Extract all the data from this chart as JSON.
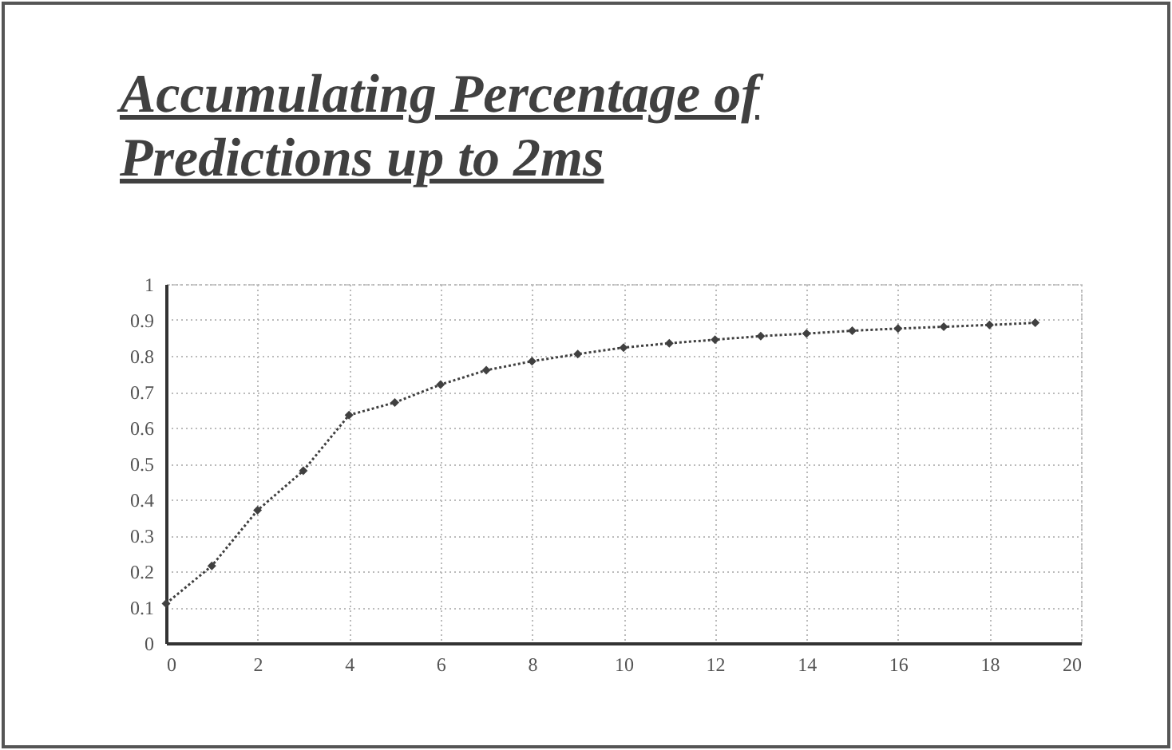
{
  "chart_data": {
    "type": "line",
    "title": "Accumulating Percentage of Predictions up to 2ms",
    "x": [
      0,
      1,
      2,
      3,
      4,
      5,
      6,
      7,
      8,
      9,
      10,
      11,
      12,
      13,
      14,
      15,
      16,
      17,
      18,
      19
    ],
    "series": [
      {
        "color": "#404040",
        "values": [
          0.11,
          0.215,
          0.37,
          0.48,
          0.635,
          0.67,
          0.72,
          0.76,
          0.785,
          0.805,
          0.823,
          0.835,
          0.845,
          0.855,
          0.862,
          0.87,
          0.876,
          0.881,
          0.886,
          0.892
        ]
      }
    ],
    "xlim": [
      0,
      20
    ],
    "xticks": [
      0,
      2,
      4,
      6,
      8,
      10,
      12,
      14,
      16,
      18,
      20
    ],
    "ylim": [
      0,
      1
    ],
    "yticks": [
      0,
      0.1,
      0.2,
      0.3,
      0.4,
      0.5,
      0.6,
      0.7,
      0.8,
      0.9,
      1
    ],
    "grid": true,
    "marker": "diamond",
    "line_style": "dotted",
    "legend": false
  }
}
